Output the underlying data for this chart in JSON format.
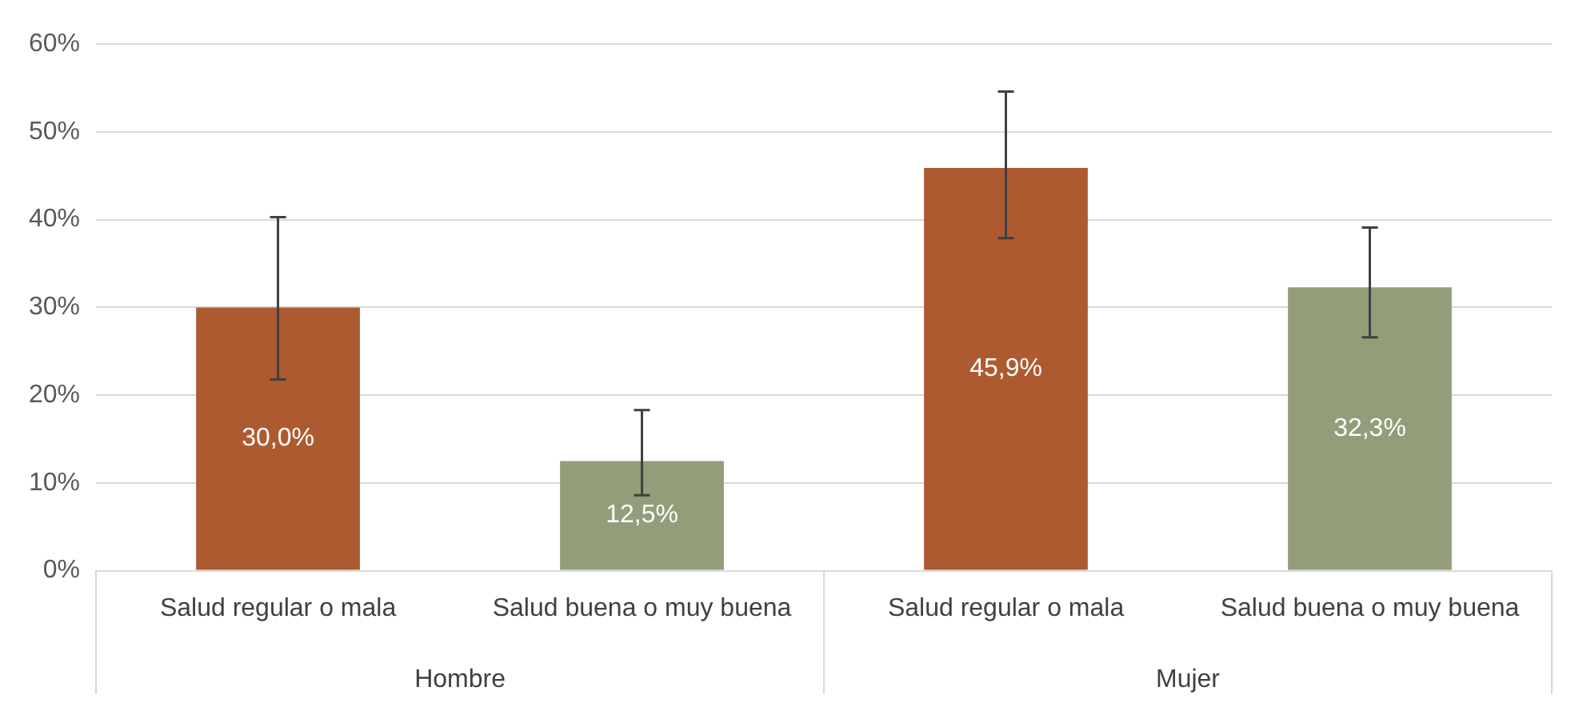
{
  "chart_data": {
    "type": "bar",
    "categories": [
      "Salud regular o mala",
      "Salud buena o muy buena",
      "Salud regular o mala",
      "Salud buena o muy buena"
    ],
    "values": [
      30.0,
      12.5,
      45.9,
      32.3
    ],
    "colors": [
      "#ae5a30",
      "#939d7a",
      "#ae5a30",
      "#939d7a"
    ],
    "errors": [
      [
        21.8,
        40.3
      ],
      [
        8.6,
        18.3
      ],
      [
        37.9,
        54.6
      ],
      [
        26.6,
        39.1
      ]
    ],
    "value_labels": [
      "30,0%",
      "12,5%",
      "45,9%",
      "32,3%"
    ],
    "annotations": [
      "Hombre",
      "Mujer"
    ],
    "ylim": [
      0,
      60
    ],
    "yticks": [
      {
        "value": 0,
        "label": "0%"
      },
      {
        "value": 10,
        "label": "10%"
      },
      {
        "value": 20,
        "label": "20%"
      },
      {
        "value": 30,
        "label": "30%"
      },
      {
        "value": 40,
        "label": "40%"
      },
      {
        "value": 50,
        "label": "50%"
      },
      {
        "value": 60,
        "label": "60%"
      }
    ],
    "grid": "y",
    "legend": false
  }
}
